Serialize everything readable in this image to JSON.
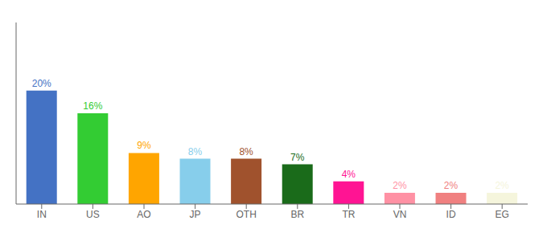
{
  "chart_data": {
    "type": "bar",
    "categories": [
      "IN",
      "US",
      "AO",
      "JP",
      "OTH",
      "BR",
      "TR",
      "VN",
      "ID",
      "EG"
    ],
    "values": [
      20,
      16,
      9,
      8,
      8,
      7,
      4,
      2,
      2,
      2
    ],
    "value_labels": [
      "20%",
      "16%",
      "9%",
      "8%",
      "8%",
      "7%",
      "4%",
      "2%",
      "2%",
      "2%"
    ],
    "colors": [
      "#4472C4",
      "#33CC33",
      "#FFA500",
      "#87CEEB",
      "#A0522D",
      "#1A6B1A",
      "#FF1493",
      "#FF91A4",
      "#F08080",
      "#F5F5DC"
    ],
    "ylim": [
      0,
      32
    ],
    "tick_labels": "x",
    "data_labels": true,
    "grid": false
  }
}
